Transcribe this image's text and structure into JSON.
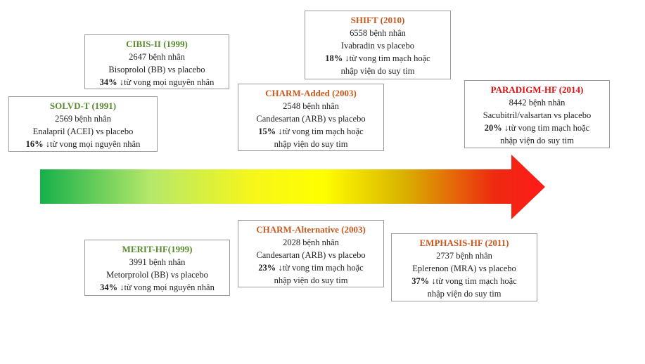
{
  "colors": {
    "green_title": "#5a8a2e",
    "orange_title": "#c8581e",
    "red_title": "#e01010",
    "arrow_stops": [
      "#16b04a",
      "#b6e86a",
      "#f6f61a",
      "#ffff00",
      "#d9b200",
      "#ee2a10",
      "#ff1a1a"
    ]
  },
  "trials": {
    "solvd": {
      "title": "SOLVD-T (1991)",
      "patients": "2569 bệnh nhân",
      "comparison": "Enalapril (ACEI) vs placebo",
      "pct": "16%",
      "result_1": " ↓từ vong mọi nguyên nhân",
      "result_2": ""
    },
    "cibis": {
      "title": "CIBIS-II (1999)",
      "patients": "2647 bệnh nhân",
      "comparison": "Bisoprolol (BB) vs placebo",
      "pct": "34%",
      "result_1": " ↓từ vong mọi nguyên nhân",
      "result_2": ""
    },
    "charm_added": {
      "title": "CHARM-Added (2003)",
      "patients": "2548 bệnh nhân",
      "comparison": "Candesartan (ARB) vs placebo",
      "pct": "15%",
      "result_1": " ↓từ vong tim mạch hoặc",
      "result_2": "nhập viện do suy tim"
    },
    "shift": {
      "title": "SHIFT (2010)",
      "patients": "6558 bệnh nhân",
      "comparison": "Ivabradin vs placebo",
      "pct": "18%",
      "result_1": " ↓từ vong tim mạch hoặc",
      "result_2": "nhập viện do suy tim"
    },
    "paradigm": {
      "title": "PARADIGM-HF (2014)",
      "patients": "8442 bệnh nhân",
      "comparison": "Sacubitril/valsartan vs placebo",
      "pct": "20%",
      "result_1": " ↓từ vong tim mạch hoặc",
      "result_2": "nhập viện do suy tim"
    },
    "merit": {
      "title": "MERIT-HF(1999)",
      "patients": "3991 bệnh nhân",
      "comparison": "Metorprolol (BB) vs placebo",
      "pct": "34%",
      "result_1": " ↓từ vong mọi nguyên nhân",
      "result_2": ""
    },
    "charm_alt": {
      "title": "CHARM-Alternative (2003)",
      "patients": "2028 bệnh nhân",
      "comparison": "Candesartan (ARB) vs placebo",
      "pct": "23%",
      "result_1": " ↓từ vong tim mạch hoặc",
      "result_2": "nhập viện do suy tim"
    },
    "emphasis": {
      "title": "EMPHASIS-HF (2011)",
      "patients": "2737 bệnh nhân",
      "comparison": "Eplerenon (MRA) vs placebo",
      "pct": "37%",
      "result_1": " ↓từ vong tim mạch hoặc",
      "result_2": "nhập viện do suy tim"
    }
  }
}
